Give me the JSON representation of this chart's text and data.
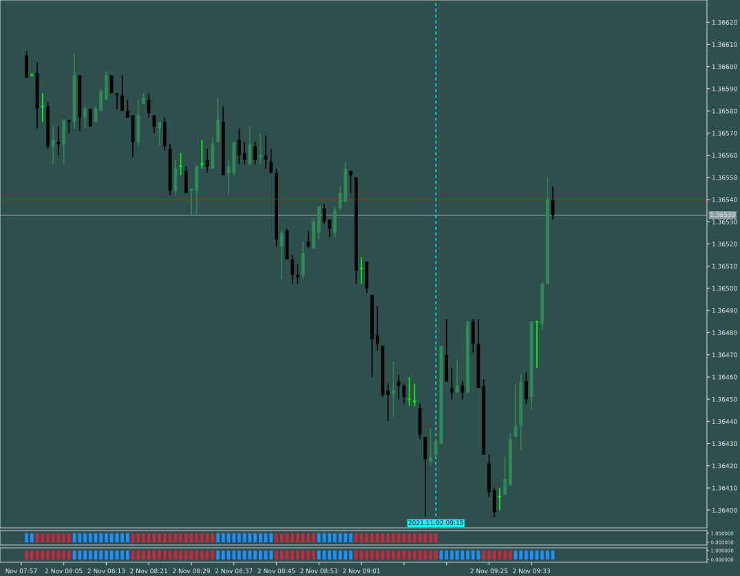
{
  "chart_data": [
    {
      "type": "candlestick",
      "x": [
        "2021-11-02T07:58",
        "2021-11-02T07:59",
        "2021-11-02T08:00",
        "2021-11-02T08:01",
        "2021-11-02T08:02",
        "2021-11-02T08:03",
        "2021-11-02T08:04",
        "2021-11-02T08:05",
        "2021-11-02T08:06",
        "2021-11-02T08:07",
        "2021-11-02T08:08",
        "2021-11-02T08:09",
        "2021-11-02T08:10",
        "2021-11-02T08:11",
        "2021-11-02T08:12",
        "2021-11-02T08:13",
        "2021-11-02T08:14",
        "2021-11-02T08:15",
        "2021-11-02T08:16",
        "2021-11-02T08:17",
        "2021-11-02T08:18",
        "2021-11-02T08:19",
        "2021-11-02T08:20",
        "2021-11-02T08:21",
        "2021-11-02T08:22",
        "2021-11-02T08:23",
        "2021-11-02T08:24",
        "2021-11-02T08:25",
        "2021-11-02T08:26",
        "2021-11-02T08:27",
        "2021-11-02T08:28",
        "2021-11-02T08:29",
        "2021-11-02T08:30",
        "2021-11-02T08:31",
        "2021-11-02T08:32",
        "2021-11-02T08:33",
        "2021-11-02T08:34",
        "2021-11-02T08:35",
        "2021-11-02T08:36",
        "2021-11-02T08:37",
        "2021-11-02T08:38",
        "2021-11-02T08:39",
        "2021-11-02T08:40",
        "2021-11-02T08:41",
        "2021-11-02T08:42",
        "2021-11-02T08:43",
        "2021-11-02T08:44",
        "2021-11-02T08:45",
        "2021-11-02T08:46",
        "2021-11-02T08:47",
        "2021-11-02T08:48",
        "2021-11-02T08:49",
        "2021-11-02T08:50",
        "2021-11-02T08:51",
        "2021-11-02T08:52",
        "2021-11-02T08:53",
        "2021-11-02T08:54",
        "2021-11-02T08:55",
        "2021-11-02T08:56",
        "2021-11-02T08:57",
        "2021-11-02T08:58",
        "2021-11-02T08:59",
        "2021-11-02T09:00",
        "2021-11-02T09:01",
        "2021-11-02T09:02",
        "2021-11-02T09:03",
        "2021-11-02T09:04",
        "2021-11-02T09:05",
        "2021-11-02T09:06",
        "2021-11-02T09:07",
        "2021-11-02T09:08",
        "2021-11-02T09:09",
        "2021-11-02T09:10",
        "2021-11-02T09:11",
        "2021-11-02T09:12",
        "2021-11-02T09:13",
        "2021-11-02T09:14",
        "2021-11-02T09:15",
        "2021-11-02T09:16",
        "2021-11-02T09:17",
        "2021-11-02T09:18",
        "2021-11-02T09:19",
        "2021-11-02T09:20",
        "2021-11-02T09:21",
        "2021-11-02T09:22",
        "2021-11-02T09:23",
        "2021-11-02T09:24",
        "2021-11-02T09:25",
        "2021-11-02T09:26",
        "2021-11-02T09:27",
        "2021-11-02T09:28",
        "2021-11-02T09:29",
        "2021-11-02T09:30",
        "2021-11-02T09:31",
        "2021-11-02T09:32",
        "2021-11-02T09:33",
        "2021-11-02T09:34",
        "2021-11-02T09:35",
        "2021-11-02T09:36",
        "2021-11-02T09:37"
      ],
      "ohlc": [
        [
          1.36605,
          1.36607,
          1.36595,
          1.36595
        ],
        [
          1.36596,
          1.36597,
          1.36596,
          1.36596
        ],
        [
          1.36597,
          1.36602,
          1.36572,
          1.36581
        ],
        [
          1.36582,
          1.36588,
          1.36575,
          1.36582
        ],
        [
          1.36582,
          1.36584,
          1.36563,
          1.36564
        ],
        [
          1.36564,
          1.36573,
          1.36556,
          1.36567
        ],
        [
          1.36566,
          1.36573,
          1.3656,
          1.36565
        ],
        [
          1.36565,
          1.36576,
          1.36556,
          1.36576
        ],
        [
          1.36576,
          1.36576,
          1.3657,
          1.36575
        ],
        [
          1.36575,
          1.36606,
          1.36572,
          1.36596
        ],
        [
          1.36596,
          1.36596,
          1.36571,
          1.36577
        ],
        [
          1.36577,
          1.36582,
          1.36572,
          1.36581
        ],
        [
          1.36581,
          1.36581,
          1.36573,
          1.36573
        ],
        [
          1.36575,
          1.36582,
          1.36575,
          1.36581
        ],
        [
          1.3658,
          1.3659,
          1.3658,
          1.36589
        ],
        [
          1.36585,
          1.36598,
          1.36585,
          1.36596
        ],
        [
          1.36596,
          1.36596,
          1.36588,
          1.36588
        ],
        [
          1.36588,
          1.36588,
          1.36581,
          1.36587
        ],
        [
          1.36587,
          1.36596,
          1.3658,
          1.3658
        ],
        [
          1.3658,
          1.36585,
          1.36577,
          1.36577
        ],
        [
          1.36578,
          1.36578,
          1.36559,
          1.36566
        ],
        [
          1.36566,
          1.36585,
          1.36564,
          1.36578
        ],
        [
          1.36583,
          1.36588,
          1.36583,
          1.36586
        ],
        [
          1.36585,
          1.36588,
          1.36577,
          1.36579
        ],
        [
          1.36578,
          1.36578,
          1.3657,
          1.36573
        ],
        [
          1.36572,
          1.36575,
          1.36564,
          1.36575
        ],
        [
          1.36575,
          1.36577,
          1.36562,
          1.36564
        ],
        [
          1.36563,
          1.36565,
          1.36542,
          1.36544
        ],
        [
          1.36544,
          1.36558,
          1.36542,
          1.36554
        ],
        [
          1.36555,
          1.36561,
          1.36551,
          1.36555
        ],
        [
          1.36553,
          1.36555,
          1.36543,
          1.36543
        ],
        [
          1.36544,
          1.36545,
          1.36533,
          1.36545
        ],
        [
          1.36544,
          1.36555,
          1.36533,
          1.36555
        ],
        [
          1.36556,
          1.36567,
          1.36554,
          1.36556
        ],
        [
          1.36558,
          1.36563,
          1.36552,
          1.36555
        ],
        [
          1.36554,
          1.36568,
          1.36554,
          1.36565
        ],
        [
          1.36566,
          1.36586,
          1.36566,
          1.36576
        ],
        [
          1.36575,
          1.36582,
          1.36551,
          1.36551
        ],
        [
          1.36552,
          1.36558,
          1.36542,
          1.36555
        ],
        [
          1.36552,
          1.36566,
          1.36551,
          1.36566
        ],
        [
          1.36567,
          1.36572,
          1.36556,
          1.3656
        ],
        [
          1.36561,
          1.36566,
          1.36556,
          1.36558
        ],
        [
          1.36556,
          1.36573,
          1.36556,
          1.36565
        ],
        [
          1.36564,
          1.36566,
          1.36556,
          1.36558
        ],
        [
          1.36559,
          1.3657,
          1.36556,
          1.3656
        ],
        [
          1.3656,
          1.36569,
          1.36554,
          1.36558
        ],
        [
          1.36557,
          1.36563,
          1.36552,
          1.36552
        ],
        [
          1.36552,
          1.36554,
          1.36519,
          1.36522
        ],
        [
          1.36519,
          1.36526,
          1.36504,
          1.36525
        ],
        [
          1.36526,
          1.36527,
          1.36513,
          1.36513
        ],
        [
          1.36513,
          1.36515,
          1.36502,
          1.36506
        ],
        [
          1.36506,
          1.36511,
          1.36502,
          1.36505
        ],
        [
          1.36506,
          1.36521,
          1.36504,
          1.36516
        ],
        [
          1.36521,
          1.36526,
          1.36518,
          1.36519
        ],
        [
          1.36518,
          1.36532,
          1.36518,
          1.3653
        ],
        [
          1.36525,
          1.36537,
          1.36522,
          1.36537
        ],
        [
          1.36536,
          1.36538,
          1.36529,
          1.3653
        ],
        [
          1.36531,
          1.36531,
          1.36523,
          1.36527
        ],
        [
          1.36525,
          1.36537,
          1.36523,
          1.36535
        ],
        [
          1.36536,
          1.36546,
          1.36535,
          1.36543
        ],
        [
          1.36539,
          1.36557,
          1.36539,
          1.36554
        ],
        [
          1.36553,
          1.36553,
          1.36543,
          1.36551
        ],
        [
          1.3655,
          1.3655,
          1.36502,
          1.36508
        ],
        [
          1.36509,
          1.36514,
          1.36502,
          1.36509
        ],
        [
          1.36512,
          1.36512,
          1.36498,
          1.365
        ],
        [
          1.36497,
          1.36497,
          1.3646,
          1.36477
        ],
        [
          1.36479,
          1.36492,
          1.36472,
          1.36475
        ],
        [
          1.36474,
          1.36474,
          1.36451,
          1.36452
        ],
        [
          1.36454,
          1.36457,
          1.3644,
          1.36452
        ],
        [
          1.36452,
          1.36467,
          1.36442,
          1.36454
        ],
        [
          1.36458,
          1.36461,
          1.3645,
          1.36456
        ],
        [
          1.36456,
          1.36457,
          1.36448,
          1.36451
        ],
        [
          1.3645,
          1.3646,
          1.36447,
          1.3645
        ],
        [
          1.36449,
          1.36457,
          1.36447,
          1.36449
        ],
        [
          1.36446,
          1.36448,
          1.36432,
          1.36434
        ],
        [
          1.36433,
          1.36433,
          1.36397,
          1.36423
        ],
        [
          1.36422,
          1.36437,
          1.3642,
          1.36424
        ],
        [
          1.36425,
          1.36432,
          1.36424,
          1.36431
        ],
        [
          1.3643,
          1.36474,
          1.3643,
          1.36474
        ],
        [
          1.3647,
          1.36486,
          1.36458,
          1.36458
        ],
        [
          1.36455,
          1.36464,
          1.3645,
          1.36453
        ],
        [
          1.36453,
          1.36468,
          1.36453,
          1.36456
        ],
        [
          1.36456,
          1.36458,
          1.3645,
          1.36453
        ],
        [
          1.36453,
          1.36485,
          1.36453,
          1.36485
        ],
        [
          1.36485,
          1.36486,
          1.36471,
          1.36475
        ],
        [
          1.36475,
          1.36486,
          1.36455,
          1.36455
        ],
        [
          1.36456,
          1.36459,
          1.36425,
          1.36425
        ],
        [
          1.36421,
          1.36425,
          1.36406,
          1.36408
        ],
        [
          1.36409,
          1.3641,
          1.36397,
          1.36399
        ],
        [
          1.36406,
          1.3641,
          1.364,
          1.36406
        ],
        [
          1.36407,
          1.36424,
          1.36407,
          1.36414
        ],
        [
          1.36411,
          1.36435,
          1.36411,
          1.36432
        ],
        [
          1.36433,
          1.36457,
          1.36433,
          1.36438
        ],
        [
          1.36438,
          1.36461,
          1.36427,
          1.36458
        ],
        [
          1.36458,
          1.36462,
          1.36448,
          1.3645
        ],
        [
          1.36451,
          1.36485,
          1.36445,
          1.36485
        ],
        [
          1.36485,
          1.36485,
          1.36464,
          1.36485
        ],
        [
          1.36484,
          1.36503,
          1.36481,
          1.36502
        ],
        [
          1.36502,
          1.3655,
          1.36502,
          1.3654
        ],
        [
          1.3654,
          1.36546,
          1.36531,
          1.36533
        ]
      ],
      "colors": [
        "#000000",
        "#00ff00",
        "#000000",
        "#00ff00",
        "#000000",
        "#2e8b57",
        "#000000",
        "#2e8b57",
        "#000000",
        "#2e8b57",
        "#000000",
        "#2e8b57",
        "#000000",
        "#2e8b57",
        "#2e8b57",
        "#2e8b57",
        "#000000",
        "#000000",
        "#000000",
        "#000000",
        "#000000",
        "#2e8b57",
        "#2e8b57",
        "#000000",
        "#000000",
        "#2e8b57",
        "#000000",
        "#000000",
        "#2e8b57",
        "#00ff00",
        "#000000",
        "#2e8b57",
        "#2e8b57",
        "#00ff00",
        "#000000",
        "#2e8b57",
        "#2e8b57",
        "#000000",
        "#2e8b57",
        "#2e8b57",
        "#000000",
        "#000000",
        "#2e8b57",
        "#000000",
        "#2e8b57",
        "#000000",
        "#000000",
        "#000000",
        "#2e8b57",
        "#000000",
        "#000000",
        "#000000",
        "#2e8b57",
        "#000000",
        "#2e8b57",
        "#2e8b57",
        "#000000",
        "#000000",
        "#2e8b57",
        "#2e8b57",
        "#2e8b57",
        "#000000",
        "#000000",
        "#00ff00",
        "#000000",
        "#000000",
        "#000000",
        "#000000",
        "#000000",
        "#2e8b57",
        "#000000",
        "#000000",
        "#00ff00",
        "#00ff00",
        "#000000",
        "#000000",
        "#2e8b57",
        "#2e8b57",
        "#2e8b57",
        "#000000",
        "#000000",
        "#2e8b57",
        "#000000",
        "#2e8b57",
        "#000000",
        "#000000",
        "#000000",
        "#000000",
        "#000000",
        "#00ff00",
        "#2e8b57",
        "#2e8b57",
        "#2e8b57",
        "#2e8b57",
        "#000000",
        "#2e8b57",
        "#00ff00",
        "#2e8b57",
        "#2e8b57",
        "#000000"
      ],
      "xlim": [
        "2021-11-02T07:53",
        "2021-11-02T10:06"
      ],
      "ylim": [
        1.36392,
        1.3663
      ],
      "yticks": [
        {
          "value": 1.364,
          "label": "1.36400"
        },
        {
          "value": 1.3641,
          "label": "1.36410"
        },
        {
          "value": 1.3642,
          "label": "1.36420"
        },
        {
          "value": 1.3643,
          "label": "1.36430"
        },
        {
          "value": 1.3644,
          "label": "1.36440"
        },
        {
          "value": 1.3645,
          "label": "1.36450"
        },
        {
          "value": 1.3646,
          "label": "1.36460"
        },
        {
          "value": 1.3647,
          "label": "1.36470"
        },
        {
          "value": 1.3648,
          "label": "1.36480"
        },
        {
          "value": 1.3649,
          "label": "1.36490"
        },
        {
          "value": 1.365,
          "label": "1.36500"
        },
        {
          "value": 1.3651,
          "label": "1.36510"
        },
        {
          "value": 1.3652,
          "label": "1.36520"
        },
        {
          "value": 1.3653,
          "label": "1.36530"
        },
        {
          "value": 1.3654,
          "label": "1.36540"
        },
        {
          "value": 1.3655,
          "label": "1.36550"
        },
        {
          "value": 1.3656,
          "label": "1.36560"
        },
        {
          "value": 1.3657,
          "label": "1.36570"
        },
        {
          "value": 1.3658,
          "label": "1.36580"
        },
        {
          "value": 1.3659,
          "label": "1.36590"
        },
        {
          "value": 1.366,
          "label": "1.36600"
        },
        {
          "value": 1.3661,
          "label": "1.36610"
        },
        {
          "value": 1.3662,
          "label": "1.36620"
        }
      ],
      "ref_lines": [
        {
          "axis": "y",
          "value": 1.3654,
          "color": "#ff0000",
          "line_style": "solid"
        },
        {
          "axis": "y",
          "value": 1.36533,
          "label": "1.36533",
          "color": "#8f9ea6",
          "line_style": "solid"
        },
        {
          "axis": "x",
          "value": "2021-11-02T09:15",
          "label": "2021.11.02 09:15",
          "color": "#00ffff",
          "line_style": "dashed"
        }
      ],
      "tick_labels": "y"
    },
    {
      "type": "bar",
      "x": [
        "2021-11-02T07:58",
        "2021-11-02T07:59",
        "2021-11-02T08:00",
        "2021-11-02T08:01",
        "2021-11-02T08:02",
        "2021-11-02T08:03",
        "2021-11-02T08:04",
        "2021-11-02T08:05",
        "2021-11-02T08:06",
        "2021-11-02T08:07",
        "2021-11-02T08:08",
        "2021-11-02T08:09",
        "2021-11-02T08:10",
        "2021-11-02T08:11",
        "2021-11-02T08:12",
        "2021-11-02T08:13",
        "2021-11-02T08:14",
        "2021-11-02T08:15",
        "2021-11-02T08:16",
        "2021-11-02T08:17",
        "2021-11-02T08:18",
        "2021-11-02T08:19",
        "2021-11-02T08:20",
        "2021-11-02T08:21",
        "2021-11-02T08:22",
        "2021-11-02T08:23",
        "2021-11-02T08:24",
        "2021-11-02T08:25",
        "2021-11-02T08:26",
        "2021-11-02T08:27",
        "2021-11-02T08:28",
        "2021-11-02T08:29",
        "2021-11-02T08:30",
        "2021-11-02T08:31",
        "2021-11-02T08:32",
        "2021-11-02T08:33",
        "2021-11-02T08:34",
        "2021-11-02T08:35",
        "2021-11-02T08:36",
        "2021-11-02T08:37",
        "2021-11-02T08:38",
        "2021-11-02T08:39",
        "2021-11-02T08:40",
        "2021-11-02T08:41",
        "2021-11-02T08:42",
        "2021-11-02T08:43",
        "2021-11-02T08:44",
        "2021-11-02T08:45",
        "2021-11-02T08:46",
        "2021-11-02T08:47",
        "2021-11-02T08:48",
        "2021-11-02T08:49",
        "2021-11-02T08:50",
        "2021-11-02T08:51",
        "2021-11-02T08:52",
        "2021-11-02T08:53",
        "2021-11-02T08:54",
        "2021-11-02T08:55",
        "2021-11-02T08:56",
        "2021-11-02T08:57",
        "2021-11-02T08:58",
        "2021-11-02T08:59",
        "2021-11-02T09:00",
        "2021-11-02T09:01",
        "2021-11-02T09:02",
        "2021-11-02T09:03",
        "2021-11-02T09:04",
        "2021-11-02T09:05",
        "2021-11-02T09:06",
        "2021-11-02T09:07",
        "2021-11-02T09:08",
        "2021-11-02T09:09",
        "2021-11-02T09:10",
        "2021-11-02T09:11",
        "2021-11-02T09:12",
        "2021-11-02T09:13",
        "2021-11-02T09:14",
        "2021-11-02T09:15"
      ],
      "values": [
        1,
        1,
        1,
        1,
        1,
        1,
        1,
        1,
        1,
        1,
        1,
        1,
        1,
        1,
        1,
        1,
        1,
        1,
        1,
        1,
        1,
        1,
        1,
        1,
        1,
        1,
        1,
        1,
        1,
        1,
        1,
        1,
        1,
        1,
        1,
        1,
        1,
        1,
        1,
        1,
        1,
        1,
        1,
        1,
        1,
        1,
        1,
        1,
        1,
        1,
        1,
        1,
        1,
        1,
        1,
        1,
        1,
        1,
        1,
        1,
        1,
        1,
        1,
        1,
        1,
        1,
        1,
        1,
        1,
        1,
        1,
        1,
        1,
        1,
        1,
        1,
        1,
        1
      ],
      "colors": [
        "#1e90ff",
        "#1e90ff",
        "#c8283c",
        "#c8283c",
        "#c8283c",
        "#c8283c",
        "#c8283c",
        "#c8283c",
        "#c8283c",
        "#1e90ff",
        "#1e90ff",
        "#1e90ff",
        "#1e90ff",
        "#1e90ff",
        "#1e90ff",
        "#1e90ff",
        "#1e90ff",
        "#1e90ff",
        "#1e90ff",
        "#1e90ff",
        "#c8283c",
        "#c8283c",
        "#c8283c",
        "#c8283c",
        "#c8283c",
        "#c8283c",
        "#c8283c",
        "#c8283c",
        "#c8283c",
        "#c8283c",
        "#c8283c",
        "#c8283c",
        "#c8283c",
        "#c8283c",
        "#c8283c",
        "#c8283c",
        "#1e90ff",
        "#1e90ff",
        "#1e90ff",
        "#1e90ff",
        "#1e90ff",
        "#1e90ff",
        "#1e90ff",
        "#1e90ff",
        "#1e90ff",
        "#1e90ff",
        "#1e90ff",
        "#c8283c",
        "#c8283c",
        "#c8283c",
        "#c8283c",
        "#c8283c",
        "#c8283c",
        "#c8283c",
        "#c8283c",
        "#1e90ff",
        "#1e90ff",
        "#1e90ff",
        "#1e90ff",
        "#1e90ff",
        "#1e90ff",
        "#1e90ff",
        "#c8283c",
        "#c8283c",
        "#c8283c",
        "#c8283c",
        "#c8283c",
        "#c8283c",
        "#c8283c",
        "#c8283c",
        "#c8283c",
        "#c8283c",
        "#c8283c",
        "#c8283c",
        "#c8283c",
        "#c8283c",
        "#c8283c",
        "#c8283c"
      ],
      "xlim": [
        "2021-11-02T07:53",
        "2021-11-02T10:06"
      ],
      "ylim": [
        -0.3,
        1.3
      ],
      "yticks": [
        {
          "value": 1,
          "label": "1.000000"
        },
        {
          "value": 0,
          "label": "0.000000"
        }
      ],
      "tick_labels": "y"
    },
    {
      "type": "bar",
      "x": [
        "2021-11-02T07:58",
        "2021-11-02T07:59",
        "2021-11-02T08:00",
        "2021-11-02T08:01",
        "2021-11-02T08:02",
        "2021-11-02T08:03",
        "2021-11-02T08:04",
        "2021-11-02T08:05",
        "2021-11-02T08:06",
        "2021-11-02T08:07",
        "2021-11-02T08:08",
        "2021-11-02T08:09",
        "2021-11-02T08:10",
        "2021-11-02T08:11",
        "2021-11-02T08:12",
        "2021-11-02T08:13",
        "2021-11-02T08:14",
        "2021-11-02T08:15",
        "2021-11-02T08:16",
        "2021-11-02T08:17",
        "2021-11-02T08:18",
        "2021-11-02T08:19",
        "2021-11-02T08:20",
        "2021-11-02T08:21",
        "2021-11-02T08:22",
        "2021-11-02T08:23",
        "2021-11-02T08:24",
        "2021-11-02T08:25",
        "2021-11-02T08:26",
        "2021-11-02T08:27",
        "2021-11-02T08:28",
        "2021-11-02T08:29",
        "2021-11-02T08:30",
        "2021-11-02T08:31",
        "2021-11-02T08:32",
        "2021-11-02T08:33",
        "2021-11-02T08:34",
        "2021-11-02T08:35",
        "2021-11-02T08:36",
        "2021-11-02T08:37",
        "2021-11-02T08:38",
        "2021-11-02T08:39",
        "2021-11-02T08:40",
        "2021-11-02T08:41",
        "2021-11-02T08:42",
        "2021-11-02T08:43",
        "2021-11-02T08:44",
        "2021-11-02T08:45",
        "2021-11-02T08:46",
        "2021-11-02T08:47",
        "2021-11-02T08:48",
        "2021-11-02T08:49",
        "2021-11-02T08:50",
        "2021-11-02T08:51",
        "2021-11-02T08:52",
        "2021-11-02T08:53",
        "2021-11-02T08:54",
        "2021-11-02T08:55",
        "2021-11-02T08:56",
        "2021-11-02T08:57",
        "2021-11-02T08:58",
        "2021-11-02T08:59",
        "2021-11-02T09:00",
        "2021-11-02T09:01",
        "2021-11-02T09:02",
        "2021-11-02T09:03",
        "2021-11-02T09:04",
        "2021-11-02T09:05",
        "2021-11-02T09:06",
        "2021-11-02T09:07",
        "2021-11-02T09:08",
        "2021-11-02T09:09",
        "2021-11-02T09:10",
        "2021-11-02T09:11",
        "2021-11-02T09:12",
        "2021-11-02T09:13",
        "2021-11-02T09:14",
        "2021-11-02T09:15",
        "2021-11-02T09:16",
        "2021-11-02T09:17",
        "2021-11-02T09:18",
        "2021-11-02T09:19",
        "2021-11-02T09:20",
        "2021-11-02T09:21",
        "2021-11-02T09:22",
        "2021-11-02T09:23",
        "2021-11-02T09:24",
        "2021-11-02T09:25",
        "2021-11-02T09:26",
        "2021-11-02T09:27",
        "2021-11-02T09:28",
        "2021-11-02T09:29",
        "2021-11-02T09:30",
        "2021-11-02T09:31",
        "2021-11-02T09:32",
        "2021-11-02T09:33",
        "2021-11-02T09:34",
        "2021-11-02T09:35",
        "2021-11-02T09:36",
        "2021-11-02T09:37"
      ],
      "values": [
        1,
        1,
        1,
        1,
        1,
        1,
        1,
        1,
        1,
        1,
        1,
        1,
        1,
        1,
        1,
        1,
        1,
        1,
        1,
        1,
        1,
        1,
        1,
        1,
        1,
        1,
        1,
        1,
        1,
        1,
        1,
        1,
        1,
        1,
        1,
        1,
        1,
        1,
        1,
        1,
        1,
        1,
        1,
        1,
        1,
        1,
        1,
        1,
        1,
        1,
        1,
        1,
        1,
        1,
        1,
        1,
        1,
        1,
        1,
        1,
        1,
        1,
        1,
        1,
        1,
        1,
        1,
        1,
        1,
        1,
        1,
        1,
        1,
        1,
        1,
        1,
        1,
        1,
        1,
        1,
        1,
        1,
        1,
        1,
        1,
        1,
        1,
        1,
        1,
        1,
        1,
        1,
        1,
        1,
        1,
        1,
        1,
        1,
        1,
        1
      ],
      "colors": [
        "#c8283c",
        "#c8283c",
        "#c8283c",
        "#c8283c",
        "#c8283c",
        "#c8283c",
        "#c8283c",
        "#c8283c",
        "#c8283c",
        "#1e90ff",
        "#1e90ff",
        "#1e90ff",
        "#1e90ff",
        "#1e90ff",
        "#1e90ff",
        "#1e90ff",
        "#1e90ff",
        "#1e90ff",
        "#1e90ff",
        "#1e90ff",
        "#c8283c",
        "#c8283c",
        "#c8283c",
        "#c8283c",
        "#c8283c",
        "#c8283c",
        "#c8283c",
        "#c8283c",
        "#c8283c",
        "#c8283c",
        "#c8283c",
        "#c8283c",
        "#c8283c",
        "#c8283c",
        "#c8283c",
        "#c8283c",
        "#1e90ff",
        "#1e90ff",
        "#1e90ff",
        "#1e90ff",
        "#1e90ff",
        "#1e90ff",
        "#1e90ff",
        "#1e90ff",
        "#1e90ff",
        "#1e90ff",
        "#1e90ff",
        "#c8283c",
        "#c8283c",
        "#c8283c",
        "#c8283c",
        "#c8283c",
        "#c8283c",
        "#c8283c",
        "#c8283c",
        "#1e90ff",
        "#1e90ff",
        "#1e90ff",
        "#1e90ff",
        "#1e90ff",
        "#1e90ff",
        "#1e90ff",
        "#c8283c",
        "#c8283c",
        "#c8283c",
        "#c8283c",
        "#c8283c",
        "#c8283c",
        "#c8283c",
        "#c8283c",
        "#c8283c",
        "#c8283c",
        "#c8283c",
        "#c8283c",
        "#c8283c",
        "#c8283c",
        "#c8283c",
        "#c8283c",
        "#1e90ff",
        "#1e90ff",
        "#1e90ff",
        "#1e90ff",
        "#1e90ff",
        "#1e90ff",
        "#1e90ff",
        "#1e90ff",
        "#c8283c",
        "#c8283c",
        "#c8283c",
        "#c8283c",
        "#c8283c",
        "#c8283c",
        "#1e90ff",
        "#1e90ff",
        "#1e90ff",
        "#1e90ff",
        "#1e90ff",
        "#1e90ff",
        "#1e90ff",
        "#1e90ff"
      ],
      "xlim": [
        "2021-11-02T07:53",
        "2021-11-02T10:06"
      ],
      "ylim": [
        -0.3,
        1.3
      ],
      "yticks": [
        {
          "value": 1,
          "label": "1.000000"
        },
        {
          "value": 0,
          "label": "0.000000"
        }
      ],
      "xticks": [
        {
          "value": "2021-11-02T07:57",
          "label": "Nov 07:57"
        },
        {
          "value": "2021-11-02T08:05",
          "label": "2 Nov 08:05"
        },
        {
          "value": "2021-11-02T08:13",
          "label": "2 Nov 08:13"
        },
        {
          "value": "2021-11-02T08:21",
          "label": "2 Nov 08:21"
        },
        {
          "value": "2021-11-02T08:29",
          "label": "2 Nov 08:29"
        },
        {
          "value": "2021-11-02T08:37",
          "label": "2 Nov 08:37"
        },
        {
          "value": "2021-11-02T08:45",
          "label": "2 Nov 08:45"
        },
        {
          "value": "2021-11-02T08:53",
          "label": "2 Nov 08:53"
        },
        {
          "value": "2021-11-02T09:01",
          "label": "2 Nov 09:01"
        },
        {
          "value": "2021-11-02T09:09",
          "label": null
        },
        {
          "value": "2021-11-02T09:17",
          "label": null
        },
        {
          "value": "2021-11-02T09:25",
          "label": "2 Nov 09:25"
        },
        {
          "value": "2021-11-02T09:33",
          "label": "2 Nov 09:33"
        }
      ]
    }
  ]
}
